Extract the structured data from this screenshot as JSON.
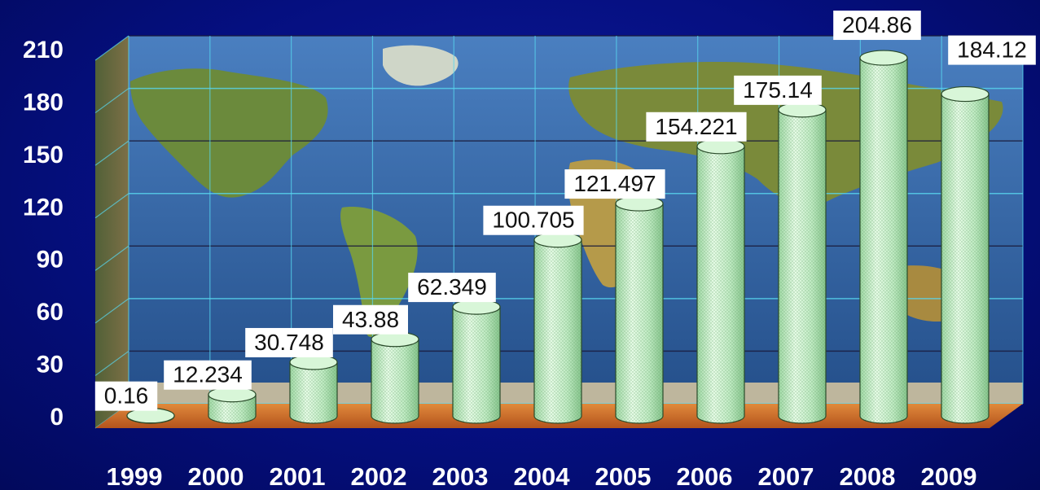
{
  "chart_data": {
    "type": "bar",
    "bar_shape": "cylinder",
    "categories": [
      "1999",
      "2000",
      "2001",
      "2002",
      "2003",
      "2004",
      "2005",
      "2006",
      "2007",
      "2008",
      "2009"
    ],
    "values": [
      0.16,
      12.234,
      30.748,
      43.88,
      62.349,
      100.705,
      121.497,
      154.221,
      175.14,
      204.86,
      184.12
    ],
    "value_labels": [
      "0.16",
      "12.234",
      "30.748",
      "43.88",
      "62.349",
      "100.705",
      "121.497",
      "154.221",
      "175.14",
      "204.86",
      "184.12"
    ],
    "title": "",
    "xlabel": "",
    "ylabel": "",
    "ylim": [
      0,
      210
    ],
    "yticks": [
      "0",
      "30",
      "60",
      "90",
      "120",
      "150",
      "180",
      "210"
    ],
    "grid": true,
    "legend": "none",
    "colors": {
      "bar": "#c8f0c8",
      "floor": "#d8702a",
      "background": "#050f80",
      "map_ocean": "#2f5f9e",
      "gridline": "#58d8f0",
      "label_box": "#ffffff"
    }
  }
}
